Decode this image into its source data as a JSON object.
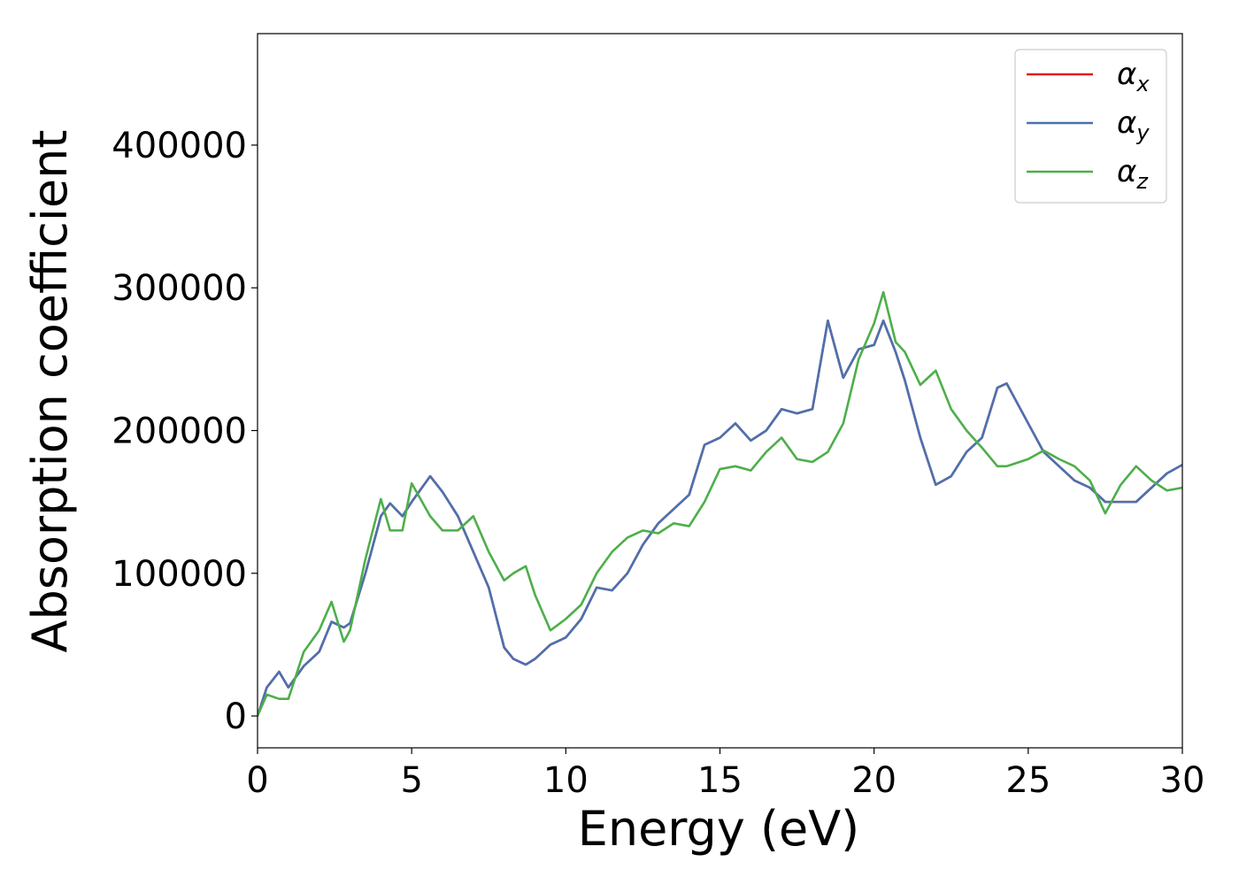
{
  "chart_data": {
    "type": "line",
    "xlabel": "Energy (eV)",
    "ylabel": "Absorption coefficient",
    "x": [
      0,
      0.3,
      0.7,
      1.0,
      1.5,
      2.0,
      2.4,
      2.8,
      3.0,
      3.5,
      4.0,
      4.3,
      4.7,
      5.0,
      5.6,
      6.0,
      6.5,
      7.0,
      7.5,
      8.0,
      8.3,
      8.7,
      9.0,
      9.5,
      10.0,
      10.5,
      11.0,
      11.5,
      12.0,
      12.5,
      13.0,
      13.5,
      14.0,
      14.5,
      15.0,
      15.5,
      16.0,
      16.5,
      17.0,
      17.5,
      18.0,
      18.5,
      19.0,
      19.5,
      20.0,
      20.3,
      20.7,
      21.0,
      21.5,
      22.0,
      22.5,
      23.0,
      23.5,
      24.0,
      24.3,
      25.0,
      25.5,
      26.0,
      26.5,
      27.0,
      27.5,
      28.0,
      28.5,
      29.0,
      29.5,
      30.0
    ],
    "series": [
      {
        "name": "αx",
        "color": "#e41a1c",
        "values": [
          0,
          20000,
          31000,
          20000,
          35000,
          45000,
          66000,
          62000,
          65000,
          100000,
          140000,
          149000,
          140000,
          150000,
          168000,
          157000,
          140000,
          115000,
          90000,
          48000,
          40000,
          36000,
          40000,
          50000,
          55000,
          68000,
          90000,
          88000,
          100000,
          120000,
          135000,
          145000,
          155000,
          190000,
          195000,
          205000,
          193000,
          200000,
          215000,
          212000,
          215000,
          277000,
          237000,
          257000,
          260000,
          277000,
          255000,
          235000,
          195000,
          162000,
          168000,
          185000,
          195000,
          230000,
          233000,
          205000,
          185000,
          175000,
          165000,
          160000,
          150000,
          150000,
          150000,
          160000,
          170000,
          176000
        ]
      },
      {
        "name": "αy",
        "color": "#4a72b0",
        "values": [
          0,
          20000,
          31000,
          20000,
          35000,
          45000,
          66000,
          62000,
          65000,
          100000,
          140000,
          149000,
          140000,
          150000,
          168000,
          157000,
          140000,
          115000,
          90000,
          48000,
          40000,
          36000,
          40000,
          50000,
          55000,
          68000,
          90000,
          88000,
          100000,
          120000,
          135000,
          145000,
          155000,
          190000,
          195000,
          205000,
          193000,
          200000,
          215000,
          212000,
          215000,
          277000,
          237000,
          257000,
          260000,
          277000,
          255000,
          235000,
          195000,
          162000,
          168000,
          185000,
          195000,
          230000,
          233000,
          205000,
          185000,
          175000,
          165000,
          160000,
          150000,
          150000,
          150000,
          160000,
          170000,
          176000
        ]
      },
      {
        "name": "αz",
        "color": "#4daf4a",
        "values": [
          0,
          15000,
          12000,
          12000,
          45000,
          60000,
          80000,
          52000,
          60000,
          110000,
          152000,
          130000,
          130000,
          163000,
          140000,
          130000,
          130000,
          140000,
          115000,
          95000,
          100000,
          105000,
          85000,
          60000,
          68000,
          78000,
          100000,
          115000,
          125000,
          130000,
          128000,
          135000,
          133000,
          150000,
          173000,
          175000,
          172000,
          185000,
          195000,
          180000,
          178000,
          185000,
          205000,
          250000,
          275000,
          297000,
          262000,
          255000,
          232000,
          242000,
          215000,
          200000,
          188000,
          175000,
          175000,
          180000,
          186000,
          180000,
          175000,
          165000,
          142000,
          162000,
          175000,
          165000,
          158000,
          160000
        ]
      }
    ],
    "xlim": [
      0,
      30
    ],
    "xticks": [
      0,
      5,
      10,
      15,
      20,
      25,
      30
    ],
    "ylim": [
      -22300,
      478100
    ],
    "yticks": [
      0,
      100000,
      200000,
      300000,
      400000
    ],
    "legend": "upper right"
  }
}
